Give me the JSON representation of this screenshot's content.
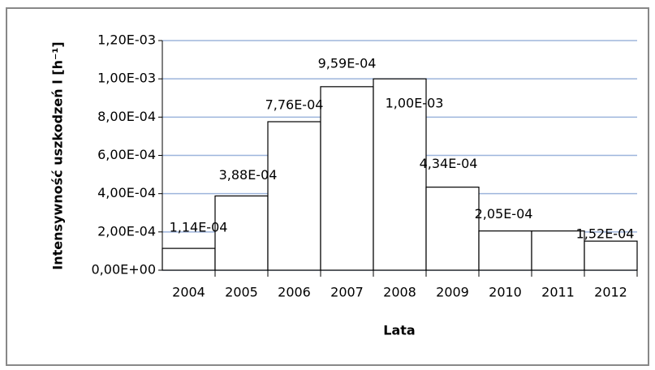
{
  "chart_data": {
    "type": "bar",
    "categories": [
      "2004",
      "2005",
      "2006",
      "2007",
      "2008",
      "2009",
      "2010",
      "2011",
      "2012"
    ],
    "values": [
      0.000114,
      0.000388,
      0.000776,
      0.000959,
      0.001,
      0.000434,
      0.000205,
      0.000205,
      0.000152
    ],
    "value_labels": [
      "1,14E-04",
      "3,88E-04",
      "7,76E-04",
      "9,59E-04",
      "1,00E-03",
      "4,34E-04",
      "2,05E-04",
      null,
      "1,52E-04"
    ],
    "color": "#ffffff",
    "ylim": [
      0,
      0.0012
    ],
    "yticks": [
      {
        "value": 0,
        "label": "0,00E+00"
      },
      {
        "value": 0.0002,
        "label": "2,00E-04"
      },
      {
        "value": 0.0004,
        "label": "4,00E-04"
      },
      {
        "value": 0.0006,
        "label": "6,00E-04"
      },
      {
        "value": 0.0008,
        "label": "8,00E-04"
      },
      {
        "value": 0.001,
        "label": "1,00E-03"
      },
      {
        "value": 0.0012,
        "label": "1,20E-03"
      }
    ],
    "xlabel": "Lata",
    "ylabel": "Intensywność uszkodzeń l [h⁻¹]",
    "grid": true
  }
}
